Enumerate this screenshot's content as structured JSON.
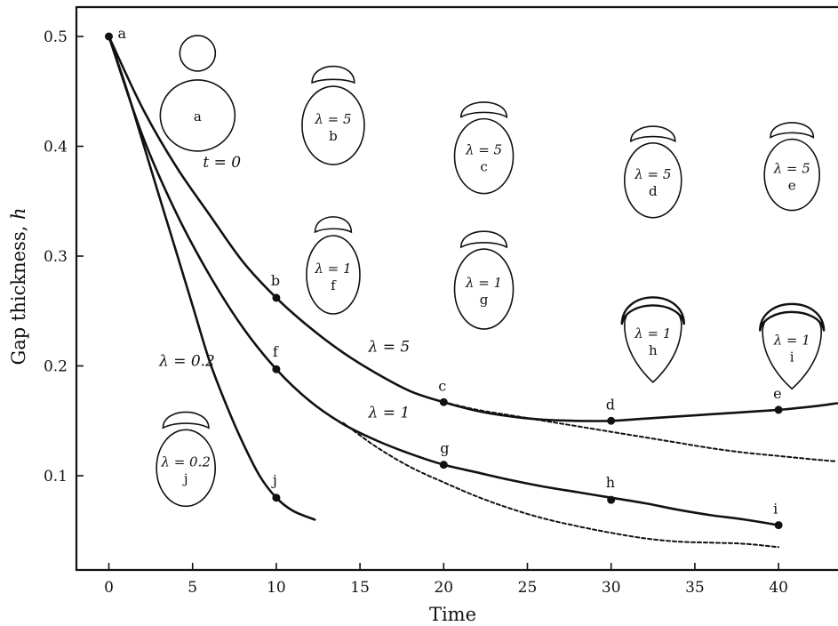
{
  "chart_data": {
    "type": "line",
    "title": "",
    "xlabel": "Time",
    "ylabel": "Gap thickness, h",
    "xlim": [
      -2,
      43.5
    ],
    "ylim": [
      0.0,
      0.53
    ],
    "xticks": [
      0,
      5,
      10,
      15,
      20,
      25,
      30,
      35,
      40
    ],
    "yticks": [
      0.1,
      0.2,
      0.3,
      0.4,
      0.5
    ],
    "xtick_labels": [
      "0",
      "5",
      "10",
      "15",
      "20",
      "25",
      "30",
      "35",
      "40"
    ],
    "ytick_labels": [
      "0.1",
      "0.2",
      "0.3",
      "0.4",
      "0.5"
    ],
    "grid": false,
    "legend": "none",
    "series": [
      {
        "style": "solid",
        "x": [
          0,
          2,
          4,
          6,
          8,
          10,
          12,
          14,
          16,
          18,
          20,
          22,
          24,
          26,
          28,
          30,
          32,
          34,
          36,
          38,
          40,
          42,
          43.5
        ],
        "y": [
          0.5,
          0.435,
          0.382,
          0.338,
          0.295,
          0.262,
          0.235,
          0.212,
          0.193,
          0.177,
          0.167,
          0.159,
          0.154,
          0.151,
          0.15,
          0.15,
          0.152,
          0.154,
          0.156,
          0.158,
          0.16,
          0.163,
          0.166
        ]
      },
      {
        "style": "dashed",
        "x": [
          20,
          22,
          24,
          26,
          28,
          30,
          32,
          34,
          36,
          38,
          40,
          42,
          43.5
        ],
        "y": [
          0.167,
          0.16,
          0.155,
          0.15,
          0.145,
          0.14,
          0.135,
          0.13,
          0.125,
          0.121,
          0.118,
          0.115,
          0.113
        ]
      },
      {
        "style": "solid",
        "x": [
          0,
          2,
          4,
          6,
          8,
          10,
          12,
          14,
          16,
          18,
          20,
          22,
          24,
          26,
          28,
          30,
          32,
          34,
          36,
          38,
          40
        ],
        "y": [
          0.5,
          0.41,
          0.34,
          0.283,
          0.235,
          0.197,
          0.168,
          0.147,
          0.132,
          0.12,
          0.11,
          0.103,
          0.096,
          0.09,
          0.085,
          0.08,
          0.075,
          0.069,
          0.064,
          0.06,
          0.055
        ]
      },
      {
        "style": "dashed",
        "x": [
          14,
          16,
          18,
          20,
          22,
          24,
          26,
          28,
          30,
          32,
          34,
          36,
          38,
          40
        ],
        "y": [
          0.148,
          0.126,
          0.108,
          0.094,
          0.081,
          0.07,
          0.061,
          0.054,
          0.048,
          0.043,
          0.04,
          0.039,
          0.038,
          0.035
        ]
      },
      {
        "style": "solid",
        "x": [
          0,
          1,
          2,
          3,
          4,
          5,
          6,
          7,
          8,
          9,
          10,
          11,
          12.3
        ],
        "y": [
          0.5,
          0.455,
          0.405,
          0.355,
          0.305,
          0.255,
          0.205,
          0.165,
          0.13,
          0.1,
          0.08,
          0.068,
          0.06
        ]
      }
    ],
    "points": [
      {
        "label": "a",
        "x": 0,
        "y": 0.5
      },
      {
        "label": "b",
        "x": 10,
        "y": 0.262
      },
      {
        "label": "c",
        "x": 20,
        "y": 0.167
      },
      {
        "label": "d",
        "x": 30,
        "y": 0.15
      },
      {
        "label": "e",
        "x": 40,
        "y": 0.16
      },
      {
        "label": "f",
        "x": 10,
        "y": 0.197
      },
      {
        "label": "g",
        "x": 20,
        "y": 0.11
      },
      {
        "label": "h",
        "x": 30,
        "y": 0.078
      },
      {
        "label": "i",
        "x": 40,
        "y": 0.055
      },
      {
        "label": "j",
        "x": 10,
        "y": 0.08
      }
    ],
    "annotations": [
      {
        "text": "λ = 5",
        "x": 15.5,
        "y": 0.213
      },
      {
        "text": "λ = 1",
        "x": 15.5,
        "y": 0.153
      },
      {
        "text": "λ = 0.2",
        "x": 3.0,
        "y": 0.2
      }
    ],
    "drops": [
      {
        "label": "a",
        "lambda_text": "",
        "time_text": "t = 0",
        "x": 5.3,
        "y": 0.428,
        "top_shape": "sphere",
        "shape": "round"
      },
      {
        "label": "b",
        "lambda_text": "λ = 5",
        "x": 13.4,
        "y": 0.419,
        "top_shape": "bell",
        "shape": "round"
      },
      {
        "label": "f",
        "lambda_text": "λ = 1",
        "x": 13.4,
        "y": 0.283,
        "top_shape": "bell",
        "shape": "round"
      },
      {
        "label": "c",
        "lambda_text": "λ = 5",
        "x": 22.4,
        "y": 0.391,
        "top_shape": "cap",
        "shape": "round"
      },
      {
        "label": "g",
        "lambda_text": "λ = 1",
        "x": 22.4,
        "y": 0.27,
        "top_shape": "cap",
        "shape": "round"
      },
      {
        "label": "d",
        "lambda_text": "λ = 5",
        "x": 32.5,
        "y": 0.369,
        "top_shape": "cap",
        "shape": "round"
      },
      {
        "label": "h",
        "lambda_text": "λ = 1",
        "x": 32.5,
        "y": 0.224,
        "top_shape": "wrap",
        "shape": "pointed"
      },
      {
        "label": "e",
        "lambda_text": "λ = 5",
        "x": 40.8,
        "y": 0.374,
        "top_shape": "cap",
        "shape": "round"
      },
      {
        "label": "i",
        "lambda_text": "λ = 1",
        "x": 40.8,
        "y": 0.218,
        "top_shape": "wrap",
        "shape": "pointed"
      },
      {
        "label": "j",
        "lambda_text": "λ = 0.2",
        "x": 4.6,
        "y": 0.107,
        "top_shape": "cap",
        "shape": "round"
      }
    ]
  }
}
